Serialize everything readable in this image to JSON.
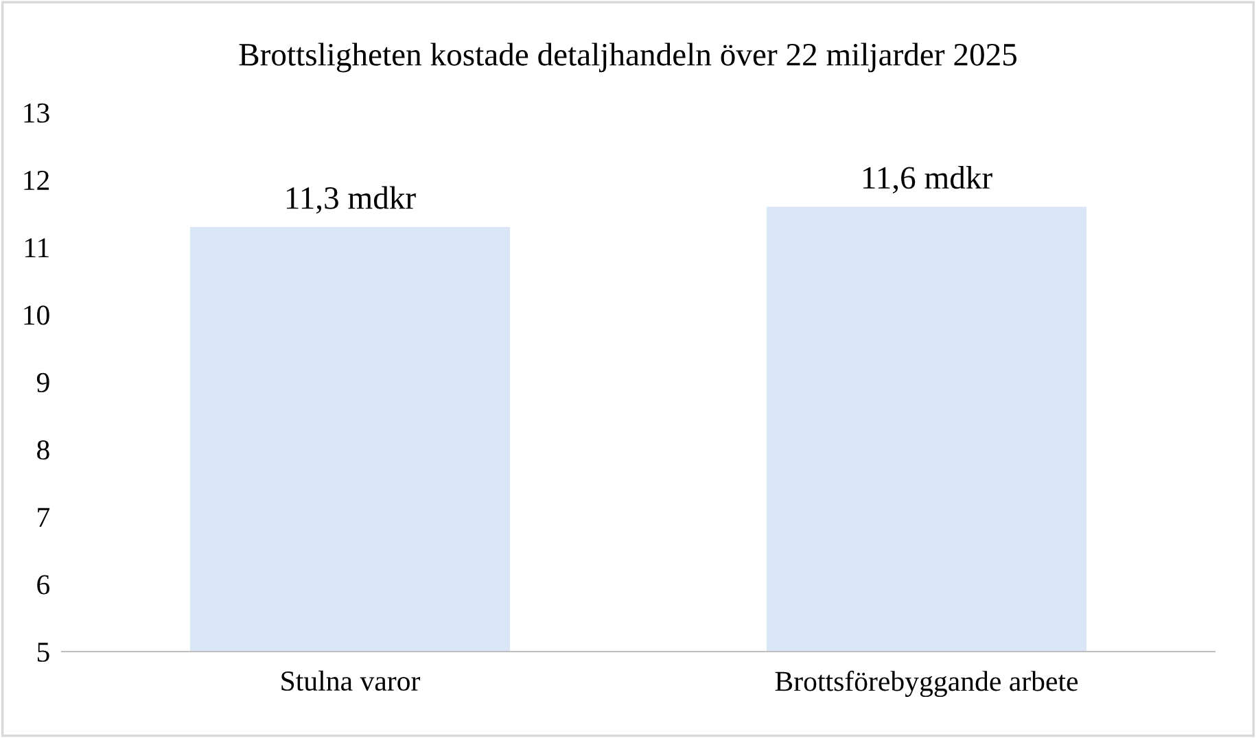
{
  "chart_data": {
    "type": "bar",
    "title": "Brottsligheten kostade detaljhandeln över 22 miljarder 2025",
    "categories": [
      "Stulna varor",
      "Brottsförebyggande arbete"
    ],
    "values": [
      11.3,
      11.6
    ],
    "value_labels": [
      "11,3 mdkr",
      "11,6 mdkr"
    ],
    "color": "#dae6f5",
    "ylim": [
      5,
      13
    ],
    "yticks": [
      5,
      6,
      7,
      8,
      9,
      10,
      11,
      12,
      13
    ],
    "grid": false,
    "legend": false
  }
}
